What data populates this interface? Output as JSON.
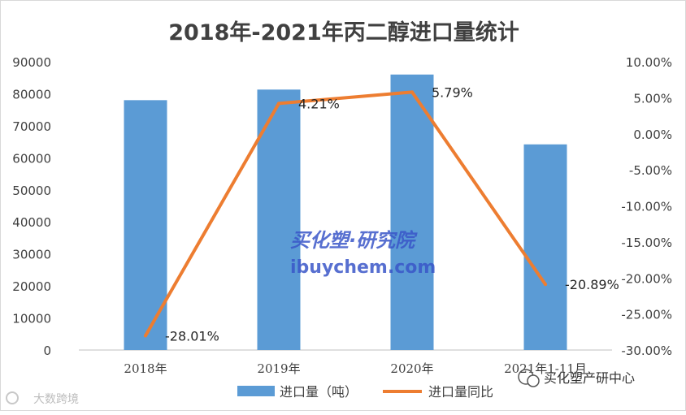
{
  "chart_data": {
    "type": "bar+line",
    "title": "2018年-2021年丙二醇进口量统计",
    "categories": [
      "2018年",
      "2019年",
      "2020年",
      "2021年1-11月"
    ],
    "series": [
      {
        "name": "进口量（吨）",
        "type": "bar",
        "axis": "left",
        "color": "#5b9bd5",
        "values": [
          78000,
          81300,
          86000,
          64200
        ]
      },
      {
        "name": "进口量同比",
        "type": "line",
        "axis": "right",
        "color": "#ed7d31",
        "values": [
          -28.01,
          4.21,
          5.79,
          -20.89
        ],
        "labels": [
          "-28.01%",
          "4.21%",
          "5.79%",
          "-20.89%"
        ]
      }
    ],
    "y_left": {
      "min": 0,
      "max": 90000,
      "step": 10000,
      "ticks": [
        "0",
        "10000",
        "20000",
        "30000",
        "40000",
        "50000",
        "60000",
        "70000",
        "80000",
        "90000"
      ]
    },
    "y_right": {
      "min": -30,
      "max": 10,
      "step": 5,
      "ticks": [
        "-30.00%",
        "-25.00%",
        "-20.00%",
        "-15.00%",
        "-10.00%",
        "-5.00%",
        "0.00%",
        "5.00%",
        "10.00%"
      ]
    },
    "grid": false,
    "legend_position": "bottom"
  },
  "watermark": {
    "text_cn": "买化塑·研究院",
    "text_en": "ibuychem.com"
  },
  "corner_left": "大数跨境",
  "corner_right": "买化塑产研中心"
}
